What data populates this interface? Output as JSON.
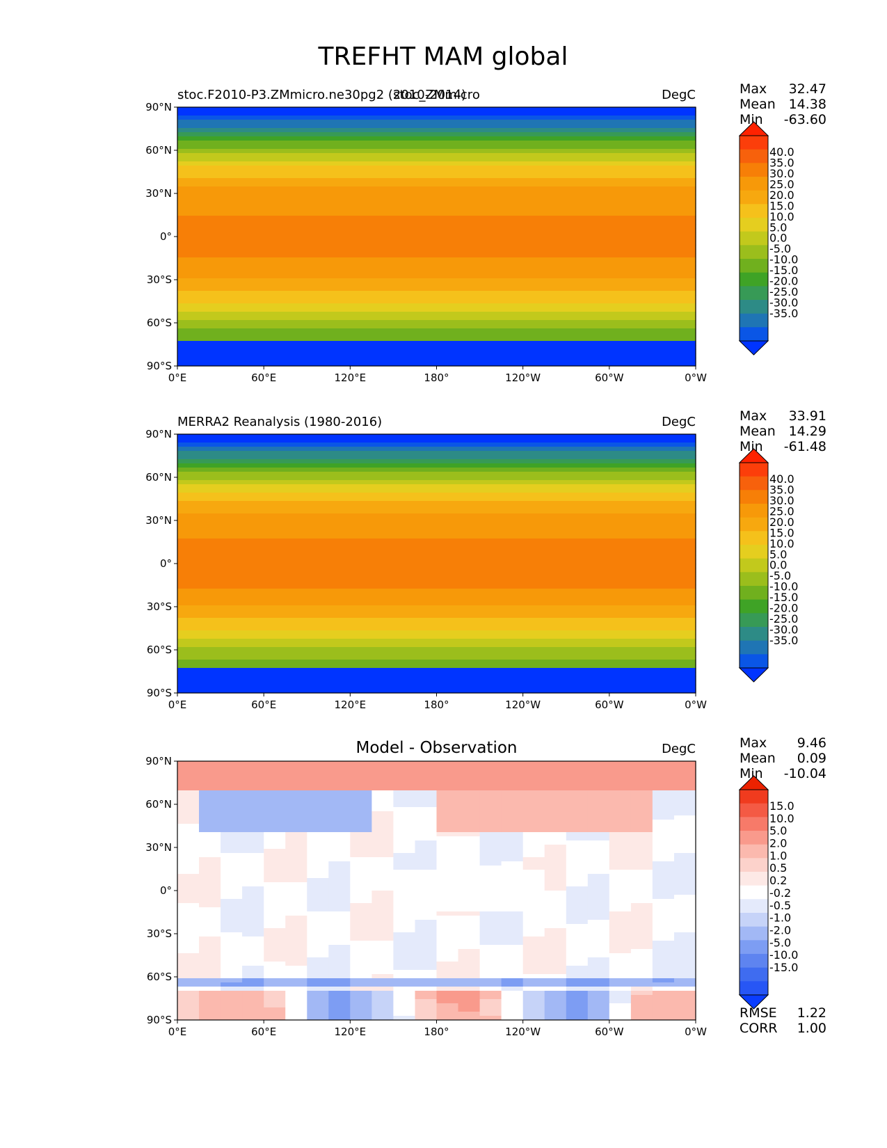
{
  "colors": {
    "field": [
      "#0034ff",
      "#0a56e6",
      "#1f75b4",
      "#2d8b86",
      "#379a56",
      "#3fa326",
      "#70b01e",
      "#9bbe1c",
      "#c2c91c",
      "#e5ce1f",
      "#f5c11b",
      "#f7a80f",
      "#f79909",
      "#f77f07",
      "#f7610c",
      "#fc3e0a",
      "#ff2200"
    ],
    "diff": [
      "#0a3dff",
      "#2756f5",
      "#3f6cf0",
      "#5e84f0",
      "#7d9df3",
      "#a2b8f5",
      "#c6d3f8",
      "#e4eafb",
      "#ffffff",
      "#fde9e6",
      "#fcd2cb",
      "#fbb9ae",
      "#f99a8c",
      "#f77a69",
      "#f45a44",
      "#f03b1e",
      "#ec2200"
    ]
  },
  "figure": {
    "title": "TREFHT MAM global"
  },
  "axes_labels": {
    "lat": [
      "90°N",
      "60°N",
      "30°N",
      "0°",
      "30°S",
      "60°S",
      "90°S"
    ],
    "lon": [
      "0°E",
      "60°E",
      "120°E",
      "180°",
      "120°W",
      "60°W",
      "0°W"
    ]
  },
  "panels": [
    {
      "left_title": "stoc.F2010-P3.ZMmicro.ne30pg2 (2010-2014)",
      "center_title": "stoc_ZMmicro",
      "units": "DegC",
      "stats": [
        {
          "label": "Max",
          "value": "32.47"
        },
        {
          "label": "Mean",
          "value": "14.38"
        },
        {
          "label": "Min",
          "value": "-63.60"
        }
      ],
      "colorbar_levels": [
        "40.0",
        "35.0",
        "30.0",
        "25.0",
        "20.0",
        "15.0",
        "10.0",
        "5.0",
        "0.0",
        "-5.0",
        "-10.0",
        "-15.0",
        "-20.0",
        "-25.0",
        "-30.0",
        "-35.0"
      ]
    },
    {
      "left_title": "MERRA2 Reanalysis (1980-2016)",
      "center_title": "",
      "units": "DegC",
      "stats": [
        {
          "label": "Max",
          "value": "33.91"
        },
        {
          "label": "Mean",
          "value": "14.29"
        },
        {
          "label": "Min",
          "value": "-61.48"
        }
      ],
      "colorbar_levels": [
        "40.0",
        "35.0",
        "30.0",
        "25.0",
        "20.0",
        "15.0",
        "10.0",
        "5.0",
        "0.0",
        "-5.0",
        "-10.0",
        "-15.0",
        "-20.0",
        "-25.0",
        "-30.0",
        "-35.0"
      ]
    },
    {
      "left_title": "",
      "center_title": "Model - Observation",
      "units": "DegC",
      "stats": [
        {
          "label": "Max",
          "value": "9.46"
        },
        {
          "label": "Mean",
          "value": "0.09"
        },
        {
          "label": "Min",
          "value": "-10.04"
        }
      ],
      "colorbar_levels": [
        "15.0",
        "10.0",
        "5.0",
        "2.0",
        "1.0",
        "0.5",
        "0.2",
        "-0.2",
        "-0.5",
        "-1.0",
        "-2.0",
        "-5.0",
        "-10.0",
        "-15.0"
      ],
      "metrics": [
        {
          "label": "RMSE",
          "value": "1.22"
        },
        {
          "label": "CORR",
          "value": "1.00"
        }
      ]
    }
  ],
  "chart_data": [
    {
      "type": "heatmap",
      "title": "stoc_ZMmicro",
      "subtitle": "stoc.F2010-P3.ZMmicro.ne30pg2 (2010-2014)",
      "variable": "TREFHT",
      "season": "MAM",
      "region": "global",
      "units": "DegC",
      "x_range": [
        0,
        360
      ],
      "y_range": [
        -90,
        90
      ],
      "max": 32.47,
      "mean": 14.38,
      "min": -63.6,
      "levels": [
        -35,
        -30,
        -25,
        -20,
        -15,
        -10,
        -5,
        0,
        5,
        10,
        15,
        20,
        25,
        30,
        35,
        40
      ]
    },
    {
      "type": "heatmap",
      "title": "MERRA2 Reanalysis (1980-2016)",
      "variable": "TREFHT",
      "season": "MAM",
      "region": "global",
      "units": "DegC",
      "x_range": [
        0,
        360
      ],
      "y_range": [
        -90,
        90
      ],
      "max": 33.91,
      "mean": 14.29,
      "min": -61.48,
      "levels": [
        -35,
        -30,
        -25,
        -20,
        -15,
        -10,
        -5,
        0,
        5,
        10,
        15,
        20,
        25,
        30,
        35,
        40
      ]
    },
    {
      "type": "heatmap",
      "title": "Model - Observation",
      "variable": "TREFHT",
      "season": "MAM",
      "region": "global",
      "units": "DegC",
      "x_range": [
        0,
        360
      ],
      "y_range": [
        -90,
        90
      ],
      "max": 9.46,
      "mean": 0.09,
      "min": -10.04,
      "rmse": 1.22,
      "corr": 1.0,
      "levels": [
        -15,
        -10,
        -5,
        -2,
        -1,
        -0.5,
        -0.2,
        0.2,
        0.5,
        1,
        2,
        5,
        10,
        15
      ]
    }
  ]
}
